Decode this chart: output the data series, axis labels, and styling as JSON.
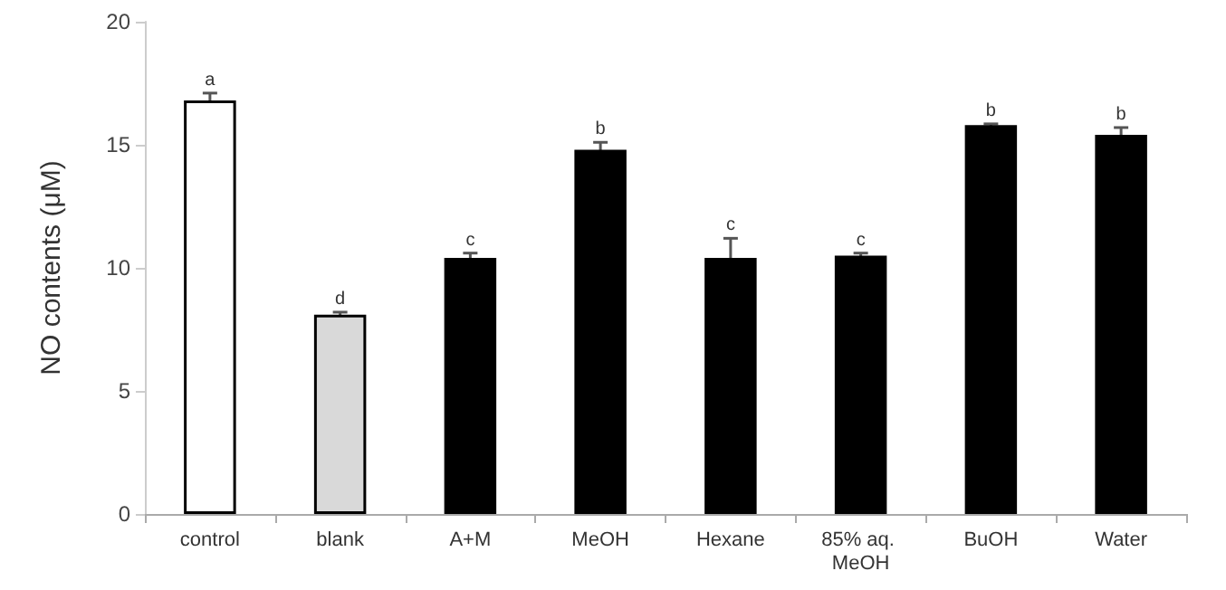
{
  "chart_data": {
    "type": "bar",
    "ylabel": "NO contents (μM)",
    "categories": [
      "control",
      "blank",
      "A+M",
      "MeOH",
      "Hexane",
      "85% aq. MeOH",
      "BuOH",
      "Water"
    ],
    "values": [
      16.8,
      8.1,
      10.4,
      14.8,
      10.4,
      10.5,
      15.8,
      15.4
    ],
    "errors": [
      0.3,
      0.1,
      0.2,
      0.3,
      0.8,
      0.1,
      0.05,
      0.3
    ],
    "colors": [
      "#ffffff",
      "#d9d9d9",
      "#000000",
      "#000000",
      "#000000",
      "#000000",
      "#000000",
      "#000000"
    ],
    "ylim": [
      0,
      20
    ],
    "yticks": [
      0,
      5,
      10,
      15,
      20
    ],
    "annotations": [
      {
        "text": "a",
        "x": "control",
        "y": 17.1
      },
      {
        "text": "d",
        "x": "blank",
        "y": 8.2
      },
      {
        "text": "c",
        "x": "A+M",
        "y": 10.6
      },
      {
        "text": "b",
        "x": "MeOH",
        "y": 15.1
      },
      {
        "text": "c",
        "x": "Hexane",
        "y": 11.2
      },
      {
        "text": "c",
        "x": "85% aq. MeOH",
        "y": 10.6
      },
      {
        "text": "b",
        "x": "BuOH",
        "y": 15.85
      },
      {
        "text": "b",
        "x": "Water",
        "y": 15.7
      }
    ]
  }
}
